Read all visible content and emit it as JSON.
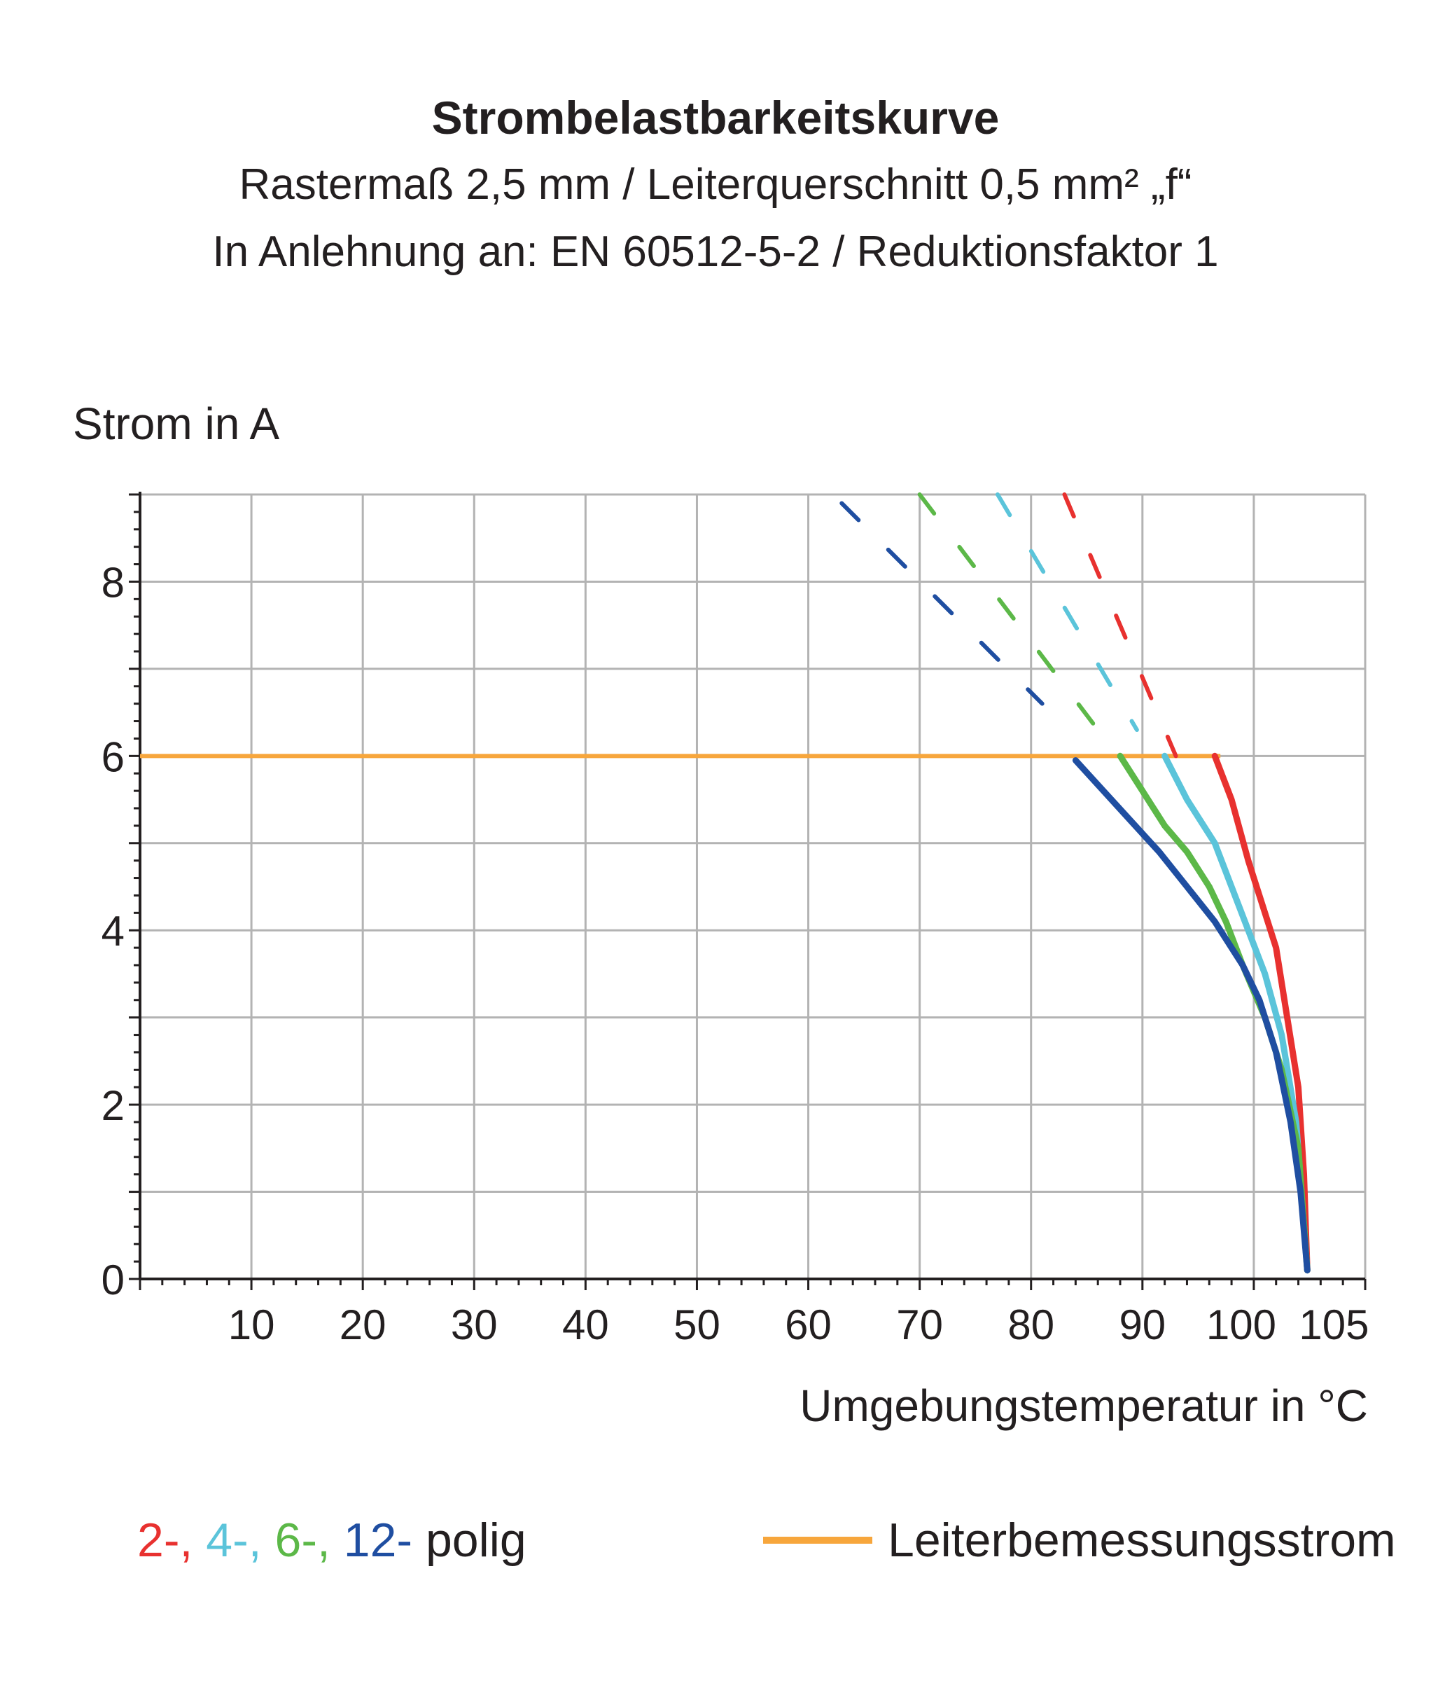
{
  "title": "Strombelastbarkeitskurve",
  "subtitle_line1": "Rastermaß 2,5 mm / Leiterquerschnitt 0,5 mm² „f“",
  "subtitle_line2": "In Anlehnung an: EN 60512-5-2 / Reduktionsfaktor 1",
  "legend": {
    "poles": [
      {
        "text": "2-",
        "color": "#e8312f"
      },
      {
        "text": ", ",
        "color": "#e8312f"
      },
      {
        "text": "4-",
        "color": "#5bc4da"
      },
      {
        "text": ", ",
        "color": "#5bc4da"
      },
      {
        "text": "6-",
        "color": "#5cb848"
      },
      {
        "text": ", ",
        "color": "#5cb848"
      },
      {
        "text": "12-",
        "color": "#1f4ea1"
      }
    ],
    "poles_suffix": " polig",
    "rated_label": "Leiterbemessungsstrom",
    "rated_color": "#f7a63c"
  },
  "chart_data": {
    "type": "line",
    "title": "Strombelastbarkeitskurve",
    "xlabel": "Umgebungstemperatur in °C",
    "ylabel": "Strom in A",
    "xlim": [
      0,
      110
    ],
    "ylim": [
      0,
      9
    ],
    "x_ticks": [
      10,
      20,
      30,
      40,
      50,
      60,
      70,
      80,
      90,
      100,
      105
    ],
    "y_ticks": [
      0,
      2,
      4,
      6,
      8
    ],
    "grid": true,
    "rated_current": {
      "name": "Leiterbemessungsstrom",
      "value": 6,
      "x_range": [
        0,
        97
      ],
      "color": "#f7a63c"
    },
    "series": [
      {
        "name": "2-",
        "color": "#e8312f",
        "solid": [
          [
            96.5,
            6.0
          ],
          [
            98,
            5.5
          ],
          [
            99.5,
            4.8
          ],
          [
            101,
            4.2
          ],
          [
            102,
            3.8
          ],
          [
            103,
            3.0
          ],
          [
            104,
            2.2
          ],
          [
            104.5,
            1.2
          ],
          [
            104.8,
            0.1
          ]
        ],
        "dashed": [
          [
            83,
            9.0
          ],
          [
            93,
            6.0
          ]
        ]
      },
      {
        "name": "4-",
        "color": "#5bc4da",
        "solid": [
          [
            92,
            6.0
          ],
          [
            94,
            5.5
          ],
          [
            96.5,
            5.0
          ],
          [
            98,
            4.5
          ],
          [
            99.5,
            4.0
          ],
          [
            101,
            3.5
          ],
          [
            102.5,
            2.8
          ],
          [
            103.8,
            1.8
          ],
          [
            104.8,
            0.1
          ]
        ],
        "dashed": [
          [
            77,
            9.0
          ],
          [
            89.5,
            6.3
          ]
        ]
      },
      {
        "name": "6-",
        "color": "#5cb848",
        "solid": [
          [
            88,
            6.0
          ],
          [
            90,
            5.6
          ],
          [
            92,
            5.2
          ],
          [
            94,
            4.9
          ],
          [
            96,
            4.5
          ],
          [
            97.5,
            4.1
          ],
          [
            99,
            3.6
          ],
          [
            101,
            3.0
          ],
          [
            102.5,
            2.4
          ],
          [
            104,
            1.5
          ],
          [
            104.8,
            0.1
          ]
        ],
        "dashed": [
          [
            70,
            9.0
          ],
          [
            86,
            6.3
          ]
        ]
      },
      {
        "name": "12-",
        "color": "#1f4ea1",
        "solid": [
          [
            84,
            5.95
          ],
          [
            86.5,
            5.6
          ],
          [
            89,
            5.25
          ],
          [
            91.5,
            4.9
          ],
          [
            94,
            4.5
          ],
          [
            96.5,
            4.1
          ],
          [
            99,
            3.6
          ],
          [
            100.5,
            3.2
          ],
          [
            102,
            2.6
          ],
          [
            103.3,
            1.8
          ],
          [
            104.2,
            1.0
          ],
          [
            104.8,
            0.1
          ]
        ],
        "dashed": [
          [
            63,
            8.9
          ],
          [
            81,
            6.6
          ]
        ]
      }
    ]
  }
}
